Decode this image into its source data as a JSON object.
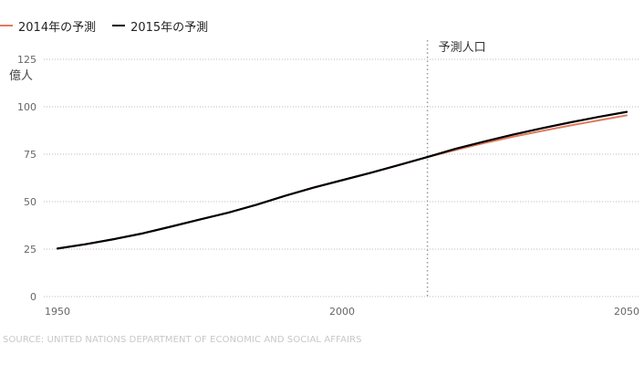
{
  "legend": {
    "items": [
      {
        "label": "2014年の予測",
        "color": "#e07a5f"
      },
      {
        "label": "2015年の予測",
        "color": "#000000"
      }
    ]
  },
  "source": "SOURCE: UNITED NATIONS DEPARTMENT OF ECONOMIC AND SOCIAL AFFAIRS",
  "chart_data": {
    "type": "line",
    "title": "",
    "xlabel": "",
    "ylabel": "億人",
    "xlim": [
      1950,
      2050
    ],
    "ylim": [
      0,
      125
    ],
    "x_ticks": [
      "1950",
      "2000",
      "2050"
    ],
    "y_ticks": [
      "0",
      "25",
      "50",
      "75",
      "100",
      "125"
    ],
    "grid": true,
    "legend_position": "top-left",
    "annotation": {
      "label": "予測人口",
      "x": 2015
    },
    "series": [
      {
        "name": "2014年の予測",
        "color": "#e07a5f",
        "x": [
          1950,
          1955,
          1960,
          1965,
          1970,
          1975,
          1980,
          1985,
          1990,
          1995,
          2000,
          2005,
          2010,
          2015,
          2020,
          2025,
          2030,
          2035,
          2040,
          2045,
          2050
        ],
        "y": [
          25.3,
          27.6,
          30.3,
          33.3,
          36.9,
          40.6,
          44.2,
          48.4,
          53.1,
          57.4,
          61.3,
          65.2,
          69.3,
          73.5,
          77.3,
          80.9,
          84.2,
          87.2,
          90.1,
          92.8,
          95.5
        ]
      },
      {
        "name": "2015年の予測",
        "color": "#000000",
        "x": [
          1950,
          1955,
          1960,
          1965,
          1970,
          1975,
          1980,
          1985,
          1990,
          1995,
          2000,
          2005,
          2010,
          2015,
          2020,
          2025,
          2030,
          2035,
          2040,
          2045,
          2050
        ],
        "y": [
          25.3,
          27.6,
          30.3,
          33.3,
          36.9,
          40.6,
          44.2,
          48.4,
          53.1,
          57.4,
          61.3,
          65.2,
          69.3,
          73.5,
          77.9,
          81.7,
          85.3,
          88.6,
          91.7,
          94.6,
          97.3
        ]
      }
    ]
  }
}
